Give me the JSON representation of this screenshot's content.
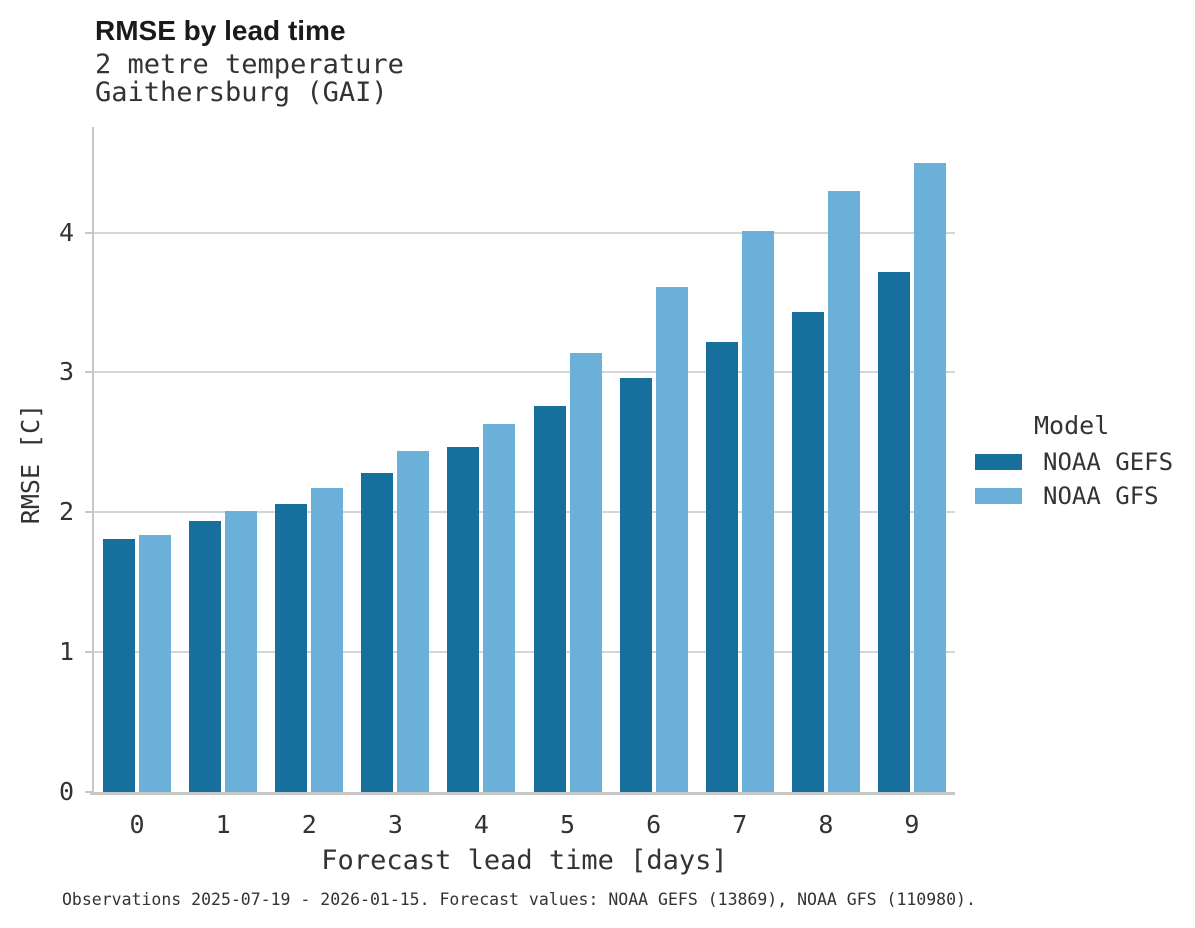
{
  "header": {
    "title": "RMSE by lead time",
    "subtitle_line1": "2 metre temperature",
    "subtitle_line2": "Gaithersburg (GAI)"
  },
  "chart_data": {
    "type": "bar",
    "grouped": true,
    "title": "RMSE by lead time",
    "subtitle": [
      "2 metre temperature",
      "Gaithersburg (GAI)"
    ],
    "xlabel": "Forecast lead time [days]",
    "ylabel": "RMSE [C]",
    "categories": [
      "0",
      "1",
      "2",
      "3",
      "4",
      "5",
      "6",
      "7",
      "8",
      "9"
    ],
    "series": [
      {
        "name": "NOAA GEFS",
        "color": "#176f9e",
        "values": [
          1.81,
          1.94,
          2.06,
          2.28,
          2.47,
          2.76,
          2.96,
          3.22,
          3.43,
          3.72
        ]
      },
      {
        "name": "NOAA GFS",
        "color": "#6ab0d8",
        "values": [
          1.84,
          2.01,
          2.17,
          2.44,
          2.63,
          3.14,
          3.61,
          4.01,
          4.3,
          4.5
        ]
      }
    ],
    "ylim": [
      0,
      4.74
    ],
    "yticks": [
      0,
      1,
      2,
      3,
      4
    ],
    "grid": "horizontal",
    "legend": {
      "title": "Model",
      "position": "right"
    }
  },
  "legend": {
    "title": "Model",
    "entries": [
      {
        "label": "NOAA GEFS",
        "color": "#176f9e"
      },
      {
        "label": "NOAA GFS",
        "color": "#6ab0d8"
      }
    ]
  },
  "caption": "Observations 2025-07-19 - 2026-01-15. Forecast values: NOAA GEFS (13869), NOAA GFS (110980).",
  "colors": {
    "gefs": "#176f9e",
    "gfs": "#6ab0d8",
    "gridline": "#d5d5d5",
    "spine": "#c7c7c7",
    "text": "#333333",
    "title_text": "#1a1a1a"
  }
}
